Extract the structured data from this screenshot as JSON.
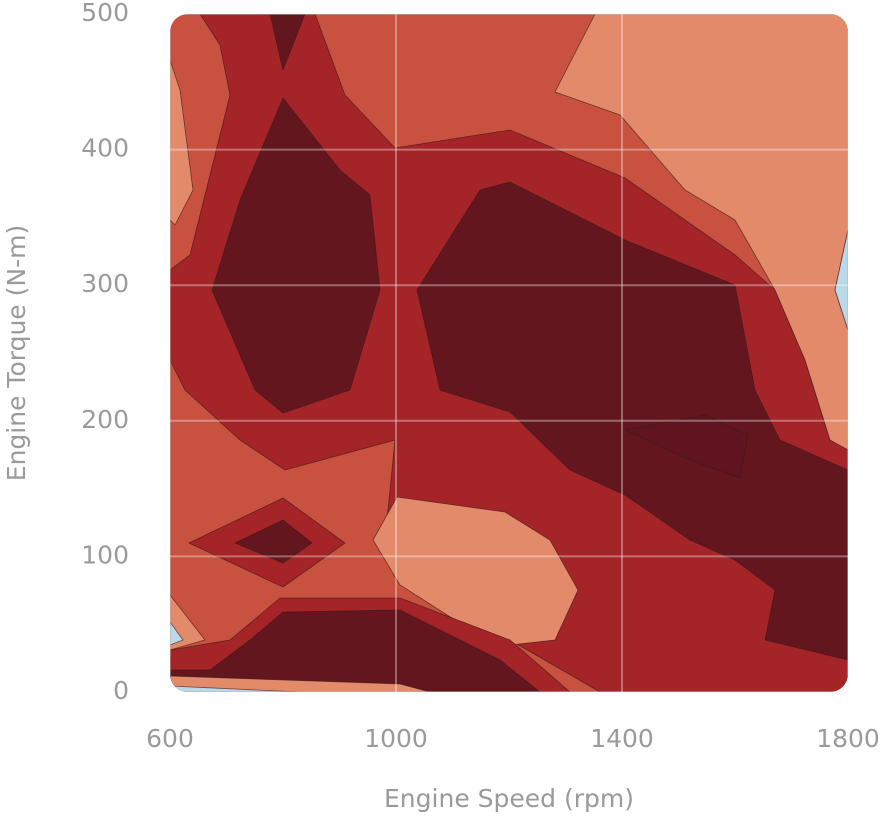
{
  "chart_data": {
    "type": "contour",
    "xlabel": "Engine Speed (rpm)",
    "ylabel": "Engine Torque (N-m)",
    "xlim": [
      600,
      1800
    ],
    "xticks": [
      600,
      1000,
      1400,
      1800
    ],
    "ylim": [
      0,
      500
    ],
    "yticks": [
      0,
      100,
      200,
      300,
      400,
      500
    ],
    "grid": true,
    "level_colors": [
      "#b9d8e8",
      "#e38a6b",
      "#c8523f",
      "#a52428",
      "#64161f",
      "#5c1420"
    ]
  }
}
